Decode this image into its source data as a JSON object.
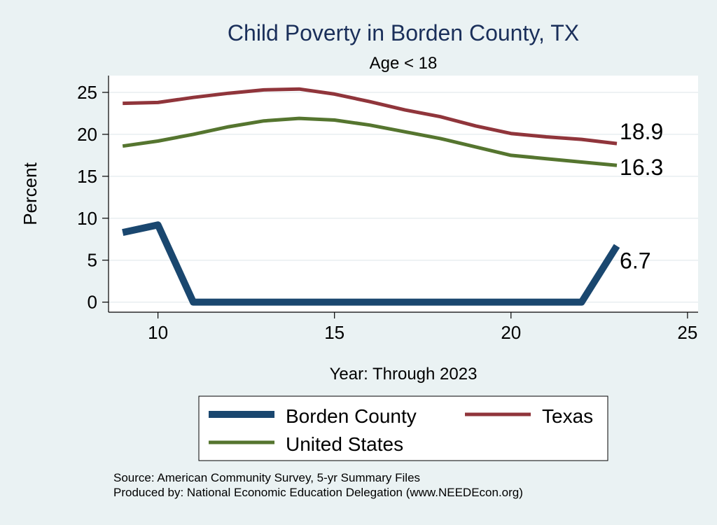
{
  "chart_data": {
    "type": "line",
    "title": "Child Poverty in Borden County, TX",
    "subtitle": "Age < 18",
    "xlabel": "Year: Through 2023",
    "ylabel": "Percent",
    "xlim": [
      8.6,
      25.3
    ],
    "ylim": [
      -1.2,
      27
    ],
    "xticks": [
      10,
      15,
      20,
      25
    ],
    "yticks": [
      0,
      5,
      10,
      15,
      20,
      25
    ],
    "grid": true,
    "legend_position": "bottom",
    "series": [
      {
        "name": "Borden County",
        "color": "#1a476f",
        "x": [
          9,
          10,
          11,
          12,
          13,
          14,
          15,
          16,
          17,
          18,
          19,
          20,
          21,
          22,
          23
        ],
        "values": [
          8.3,
          9.2,
          0,
          0,
          0,
          0,
          0,
          0,
          0,
          0,
          0,
          0,
          0,
          0,
          6.7
        ],
        "end_label": "6.7"
      },
      {
        "name": "Texas",
        "color": "#90353b",
        "x": [
          9,
          10,
          11,
          12,
          13,
          14,
          15,
          16,
          17,
          18,
          19,
          20,
          21,
          22,
          23
        ],
        "values": [
          23.7,
          23.8,
          24.4,
          24.9,
          25.3,
          25.4,
          24.8,
          23.9,
          22.9,
          22.1,
          21.0,
          20.1,
          19.7,
          19.4,
          18.9
        ],
        "end_label": "18.9"
      },
      {
        "name": "United States",
        "color": "#55752f",
        "x": [
          9,
          10,
          11,
          12,
          13,
          14,
          15,
          16,
          17,
          18,
          19,
          20,
          21,
          22,
          23
        ],
        "values": [
          18.6,
          19.2,
          20.0,
          20.9,
          21.6,
          21.9,
          21.7,
          21.1,
          20.3,
          19.5,
          18.5,
          17.5,
          17.1,
          16.7,
          16.3
        ],
        "end_label": "16.3"
      }
    ]
  },
  "footer": {
    "source": "Source: American Community Survey, 5-yr Summary Files",
    "producer": "Produced by: National Economic Education Delegation (www.NEEDEcon.org)"
  }
}
